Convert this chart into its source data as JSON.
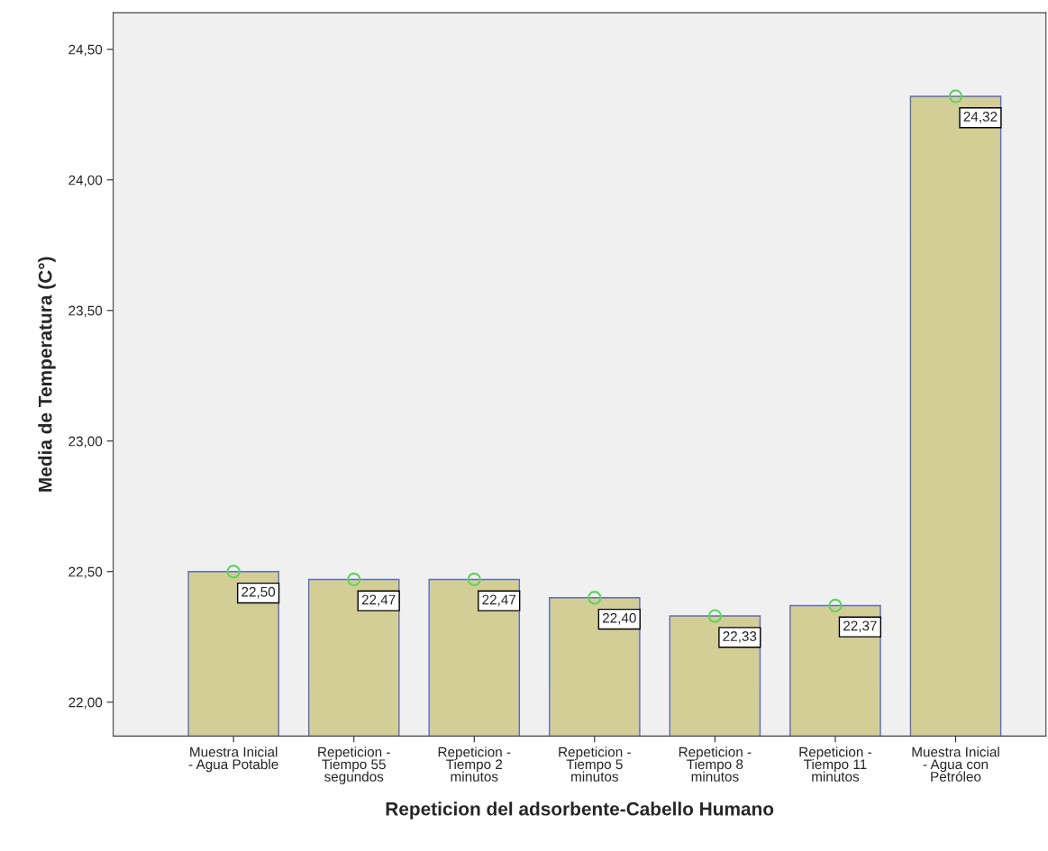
{
  "chart_data": {
    "type": "bar",
    "xlabel": "Repeticion del adsorbente-Cabello Humano",
    "ylabel": "Media de Temperatura (C°)",
    "categories": [
      "Muestra Inicial\n- Agua Potable",
      "Repeticion -\nTiempo 55\nsegundos",
      "Repeticion -\nTiempo 2\nminutos",
      "Repeticion -\nTiempo 5\nminutos",
      "Repeticion -\nTiempo 8\nminutos",
      "Repeticion -\nTiempo 11\nminutos",
      "Muestra Inicial\n- Agua con\nPetróleo"
    ],
    "series": [
      {
        "color": "#d3ce96",
        "values": [
          22.5,
          22.47,
          22.47,
          22.4,
          22.33,
          22.37,
          24.32
        ],
        "value_labels": [
          "22,50",
          "22,47",
          "22,47",
          "22,40",
          "22,33",
          "22,37",
          "24,32"
        ]
      },
      {
        "type": "scatter",
        "color": "#5fd35f",
        "values": [
          22.5,
          22.47,
          22.47,
          22.4,
          22.33,
          22.37,
          24.32
        ]
      }
    ],
    "marker": "circle",
    "ylim": [
      21.87,
      24.64
    ],
    "yticks": [
      {
        "value": 22.0,
        "label": "22,00"
      },
      {
        "value": 22.5,
        "label": "22,50"
      },
      {
        "value": 23.0,
        "label": "23,00"
      },
      {
        "value": 23.5,
        "label": "23,50"
      },
      {
        "value": 24.0,
        "label": "24,00"
      },
      {
        "value": 24.5,
        "label": "24,50"
      }
    ],
    "grid": false,
    "legend": false
  }
}
